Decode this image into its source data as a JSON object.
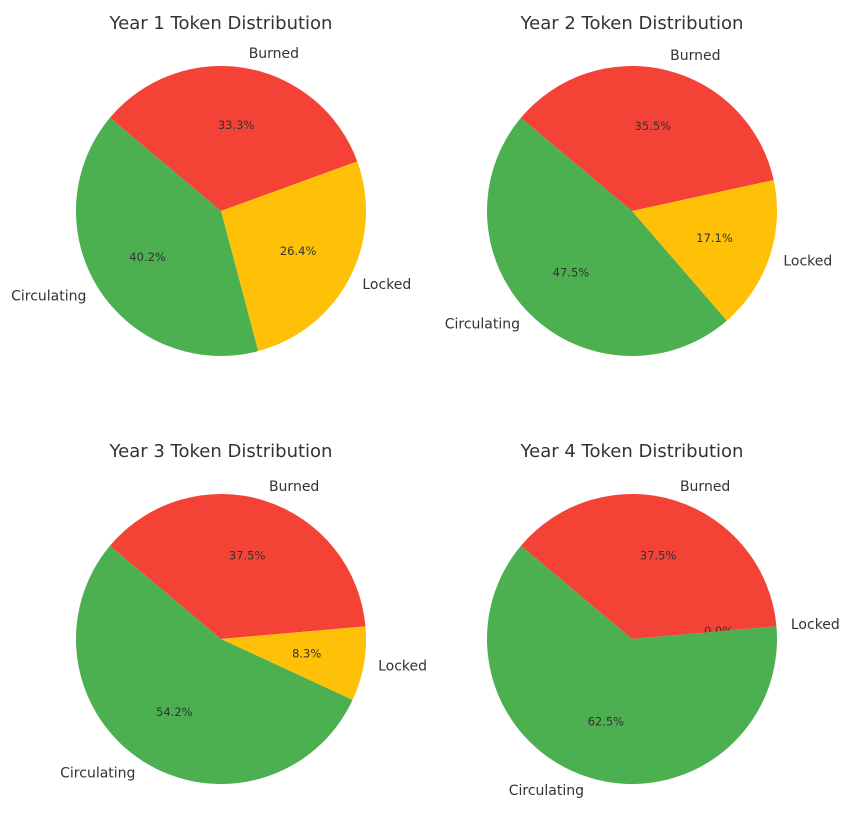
{
  "chart_data": [
    {
      "type": "pie",
      "title": "Year 1 Token Distribution",
      "categories": [
        "Burned",
        "Locked",
        "Circulating"
      ],
      "values": [
        33.3,
        26.4,
        40.2
      ],
      "value_labels": [
        "33.3%",
        "26.4%",
        "40.2%"
      ],
      "colors": [
        "#f44336",
        "#ffc107",
        "#4caf50"
      ],
      "start_angle_deg": 140,
      "direction": "clockwise"
    },
    {
      "type": "pie",
      "title": "Year 2 Token Distribution",
      "categories": [
        "Burned",
        "Locked",
        "Circulating"
      ],
      "values": [
        35.5,
        17.1,
        47.5
      ],
      "value_labels": [
        "35.5%",
        "17.1%",
        "47.5%"
      ],
      "colors": [
        "#f44336",
        "#ffc107",
        "#4caf50"
      ],
      "start_angle_deg": 140,
      "direction": "clockwise"
    },
    {
      "type": "pie",
      "title": "Year 3 Token Distribution",
      "categories": [
        "Burned",
        "Locked",
        "Circulating"
      ],
      "values": [
        37.5,
        8.3,
        54.2
      ],
      "value_labels": [
        "37.5%",
        "8.3%",
        "54.2%"
      ],
      "colors": [
        "#f44336",
        "#ffc107",
        "#4caf50"
      ],
      "start_angle_deg": 140,
      "direction": "clockwise"
    },
    {
      "type": "pie",
      "title": "Year 4 Token Distribution",
      "categories": [
        "Burned",
        "Locked",
        "Circulating"
      ],
      "values": [
        37.5,
        0.0,
        62.5
      ],
      "value_labels": [
        "37.5%",
        "0.0%",
        "62.5%"
      ],
      "colors": [
        "#f44336",
        "#ffc107",
        "#4caf50"
      ],
      "start_angle_deg": 140,
      "direction": "clockwise"
    }
  ]
}
